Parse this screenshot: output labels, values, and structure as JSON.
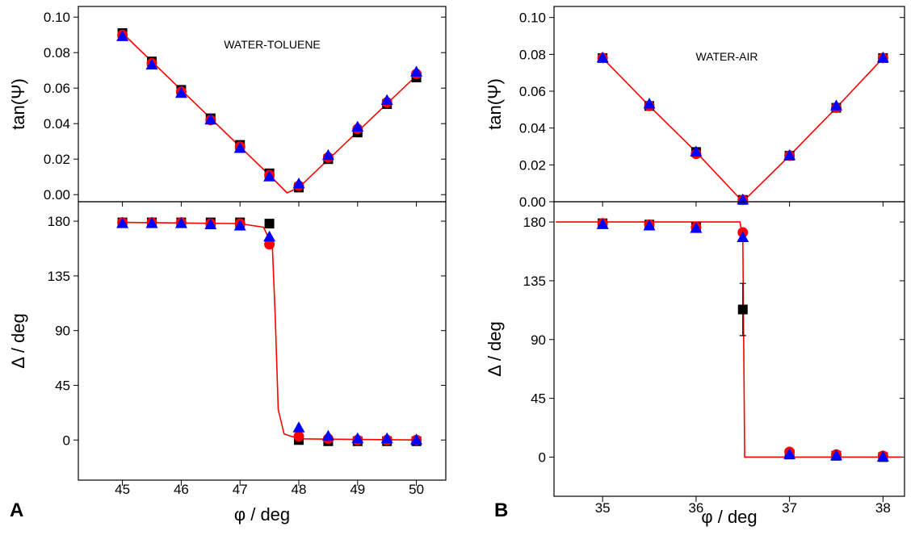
{
  "chart_data": [
    {
      "type": "scatter",
      "ylabel": "tan(Ψ)",
      "annotation": "WATER-TOLUENE",
      "x": [
        45,
        45.5,
        46,
        46.5,
        47,
        47.5,
        48,
        48.5,
        49,
        49.5,
        50
      ],
      "xlim": [
        44.25,
        50.5
      ],
      "ylim": [
        -0.004,
        0.106
      ],
      "yticks": [
        {
          "value": 0,
          "label": "0.00"
        },
        {
          "value": 0.02,
          "label": "0.02"
        },
        {
          "value": 0.04,
          "label": "0.04"
        },
        {
          "value": 0.06,
          "label": "0.06"
        },
        {
          "value": 0.08,
          "label": "0.08"
        },
        {
          "value": 0.1,
          "label": "0.10"
        }
      ],
      "series": [
        {
          "marker": "square",
          "color": "#000000",
          "values": [
            0.091,
            0.075,
            0.059,
            0.043,
            0.028,
            0.012,
            0.004,
            0.02,
            0.035,
            0.051,
            0.066
          ]
        },
        {
          "marker": "circle",
          "color": "#ff0000",
          "values": [
            0.09,
            0.074,
            0.058,
            0.042,
            0.027,
            0.011,
            0.005,
            0.021,
            0.037,
            0.052,
            0.068
          ]
        },
        {
          "marker": "triangle",
          "color": "#0000ff",
          "values": [
            0.089,
            0.073,
            0.057,
            0.042,
            0.026,
            0.01,
            0.006,
            0.022,
            0.038,
            0.053,
            0.069
          ]
        }
      ],
      "fit": {
        "color": "#ff0000",
        "x": [
          45,
          47.5,
          47.8,
          48,
          50
        ],
        "values": [
          0.091,
          0.011,
          0.001,
          0.004,
          0.067
        ]
      }
    },
    {
      "type": "scatter",
      "ylabel": "Δ / deg",
      "xlabel": "φ / deg",
      "panel_label": "A",
      "x": [
        45,
        45.5,
        46,
        46.5,
        47,
        47.5,
        48,
        48.5,
        49,
        49.5,
        50
      ],
      "xlim": [
        44.25,
        50.5
      ],
      "xticks": [
        45,
        46,
        47,
        48,
        49,
        50
      ],
      "ylim": [
        -33,
        196
      ],
      "yticks": [
        0,
        45,
        90,
        135,
        180
      ],
      "series": [
        {
          "marker": "square",
          "color": "#000000",
          "values": [
            179,
            179,
            179,
            179,
            179,
            178,
            0,
            -1,
            -1,
            -1,
            -1
          ]
        },
        {
          "marker": "circle",
          "color": "#ff0000",
          "values": [
            179,
            179,
            179,
            178,
            178,
            161,
            3,
            1,
            0,
            0,
            0
          ]
        },
        {
          "marker": "triangle",
          "color": "#0000ff",
          "values": [
            178,
            178,
            178,
            177,
            176,
            167,
            10,
            3,
            1,
            1,
            0
          ]
        }
      ],
      "fit": {
        "color": "#ff0000",
        "x": [
          45,
          47,
          47.4,
          47.55,
          47.6,
          47.65,
          47.75,
          48,
          50
        ],
        "values": [
          179,
          178,
          175,
          160,
          100,
          25,
          5,
          1,
          0
        ]
      }
    },
    {
      "type": "scatter",
      "ylabel": "tan(Ψ)",
      "annotation": "WATER-AIR",
      "x": [
        35,
        35.5,
        36,
        36.5,
        37,
        37.5,
        38
      ],
      "xlim": [
        34.48,
        38.23
      ],
      "ylim": [
        0,
        0.106
      ],
      "yticks": [
        {
          "value": 0,
          "label": "0.00"
        },
        {
          "value": 0.02,
          "label": "0.02"
        },
        {
          "value": 0.04,
          "label": "0.04"
        },
        {
          "value": 0.06,
          "label": "0.06"
        },
        {
          "value": 0.08,
          "label": "0.08"
        },
        {
          "value": 0.1,
          "label": "0.10"
        }
      ],
      "series": [
        {
          "marker": "square",
          "color": "#000000",
          "values": [
            0.078,
            0.052,
            0.027,
            0.001,
            0.025,
            0.051,
            0.078
          ]
        },
        {
          "marker": "circle",
          "color": "#ff0000",
          "values": [
            0.078,
            0.052,
            0.026,
            0.001,
            0.025,
            0.051,
            0.078
          ]
        },
        {
          "marker": "triangle",
          "color": "#0000ff",
          "values": [
            0.078,
            0.053,
            0.027,
            0.001,
            0.025,
            0.052,
            0.078
          ]
        }
      ],
      "fit": {
        "color": "#ff0000",
        "x": [
          35,
          35.5,
          36,
          36.5,
          37,
          37.5,
          38
        ],
        "values": [
          0.078,
          0.052,
          0.027,
          0.0,
          0.025,
          0.051,
          0.078
        ]
      }
    },
    {
      "type": "scatter",
      "ylabel": "Δ / deg",
      "xlabel": "φ / deg",
      "panel_label": "B",
      "x": [
        35,
        35.5,
        36,
        36.5,
        37,
        37.5,
        38
      ],
      "xlim": [
        34.48,
        38.23
      ],
      "xticks": [
        35,
        36,
        37,
        38
      ],
      "ylim": [
        -30,
        195.5
      ],
      "yticks": [
        0,
        45,
        90,
        135,
        180
      ],
      "series": [
        {
          "marker": "square",
          "color": "#000000",
          "values": [
            179,
            178,
            176,
            113,
            2,
            1,
            0
          ],
          "errors": [
            null,
            null,
            null,
            20,
            null,
            null,
            null
          ]
        },
        {
          "marker": "circle",
          "color": "#ff0000",
          "values": [
            179,
            178,
            176,
            172,
            4,
            2,
            1
          ]
        },
        {
          "marker": "triangle",
          "color": "#0000ff",
          "values": [
            178,
            177,
            175,
            168,
            2,
            1,
            0
          ]
        }
      ],
      "fit": {
        "color": "#ff0000",
        "x": [
          34.5,
          36.47,
          36.5,
          36.52,
          38.2
        ],
        "values": [
          180,
          180,
          168,
          0,
          0
        ]
      }
    }
  ]
}
